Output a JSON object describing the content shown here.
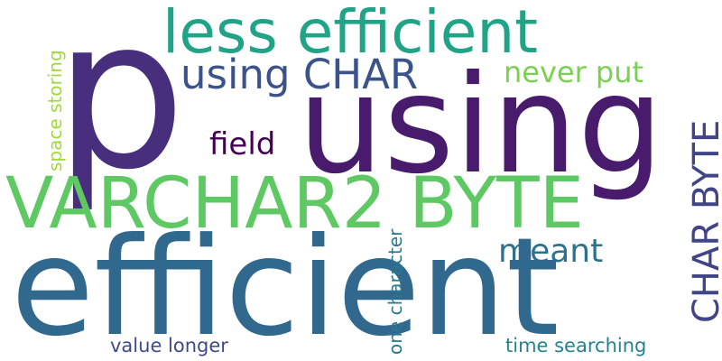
{
  "word_cloud": {
    "words": [
      {
        "id": "p",
        "text": "p",
        "color": "#472f7d"
      },
      {
        "id": "using",
        "text": "using",
        "color": "#481b6d"
      },
      {
        "id": "efficient",
        "text": "efficient",
        "color": "#31688e"
      },
      {
        "id": "varchar2-byte",
        "text": "VARCHAR2 BYTE",
        "color": "#5ec962"
      },
      {
        "id": "less-efficient",
        "text": "less efficient",
        "color": "#20a386"
      },
      {
        "id": "using-char",
        "text": "using CHAR",
        "color": "#3b528b"
      },
      {
        "id": "char-byte",
        "text": "CHAR BYTE",
        "color": "#414487"
      },
      {
        "id": "never-put",
        "text": "never put",
        "color": "#7ad151"
      },
      {
        "id": "field",
        "text": "field",
        "color": "#440154"
      },
      {
        "id": "meant",
        "text": "meant",
        "color": "#2c728e"
      },
      {
        "id": "space-storing",
        "text": "space storing",
        "color": "#a0da39"
      },
      {
        "id": "one-character",
        "text": "one character",
        "color": "#2a788e"
      },
      {
        "id": "value-longer",
        "text": "value longer",
        "color": "#3e4a89"
      },
      {
        "id": "time-searching",
        "text": "time searching",
        "color": "#26828e"
      }
    ]
  }
}
